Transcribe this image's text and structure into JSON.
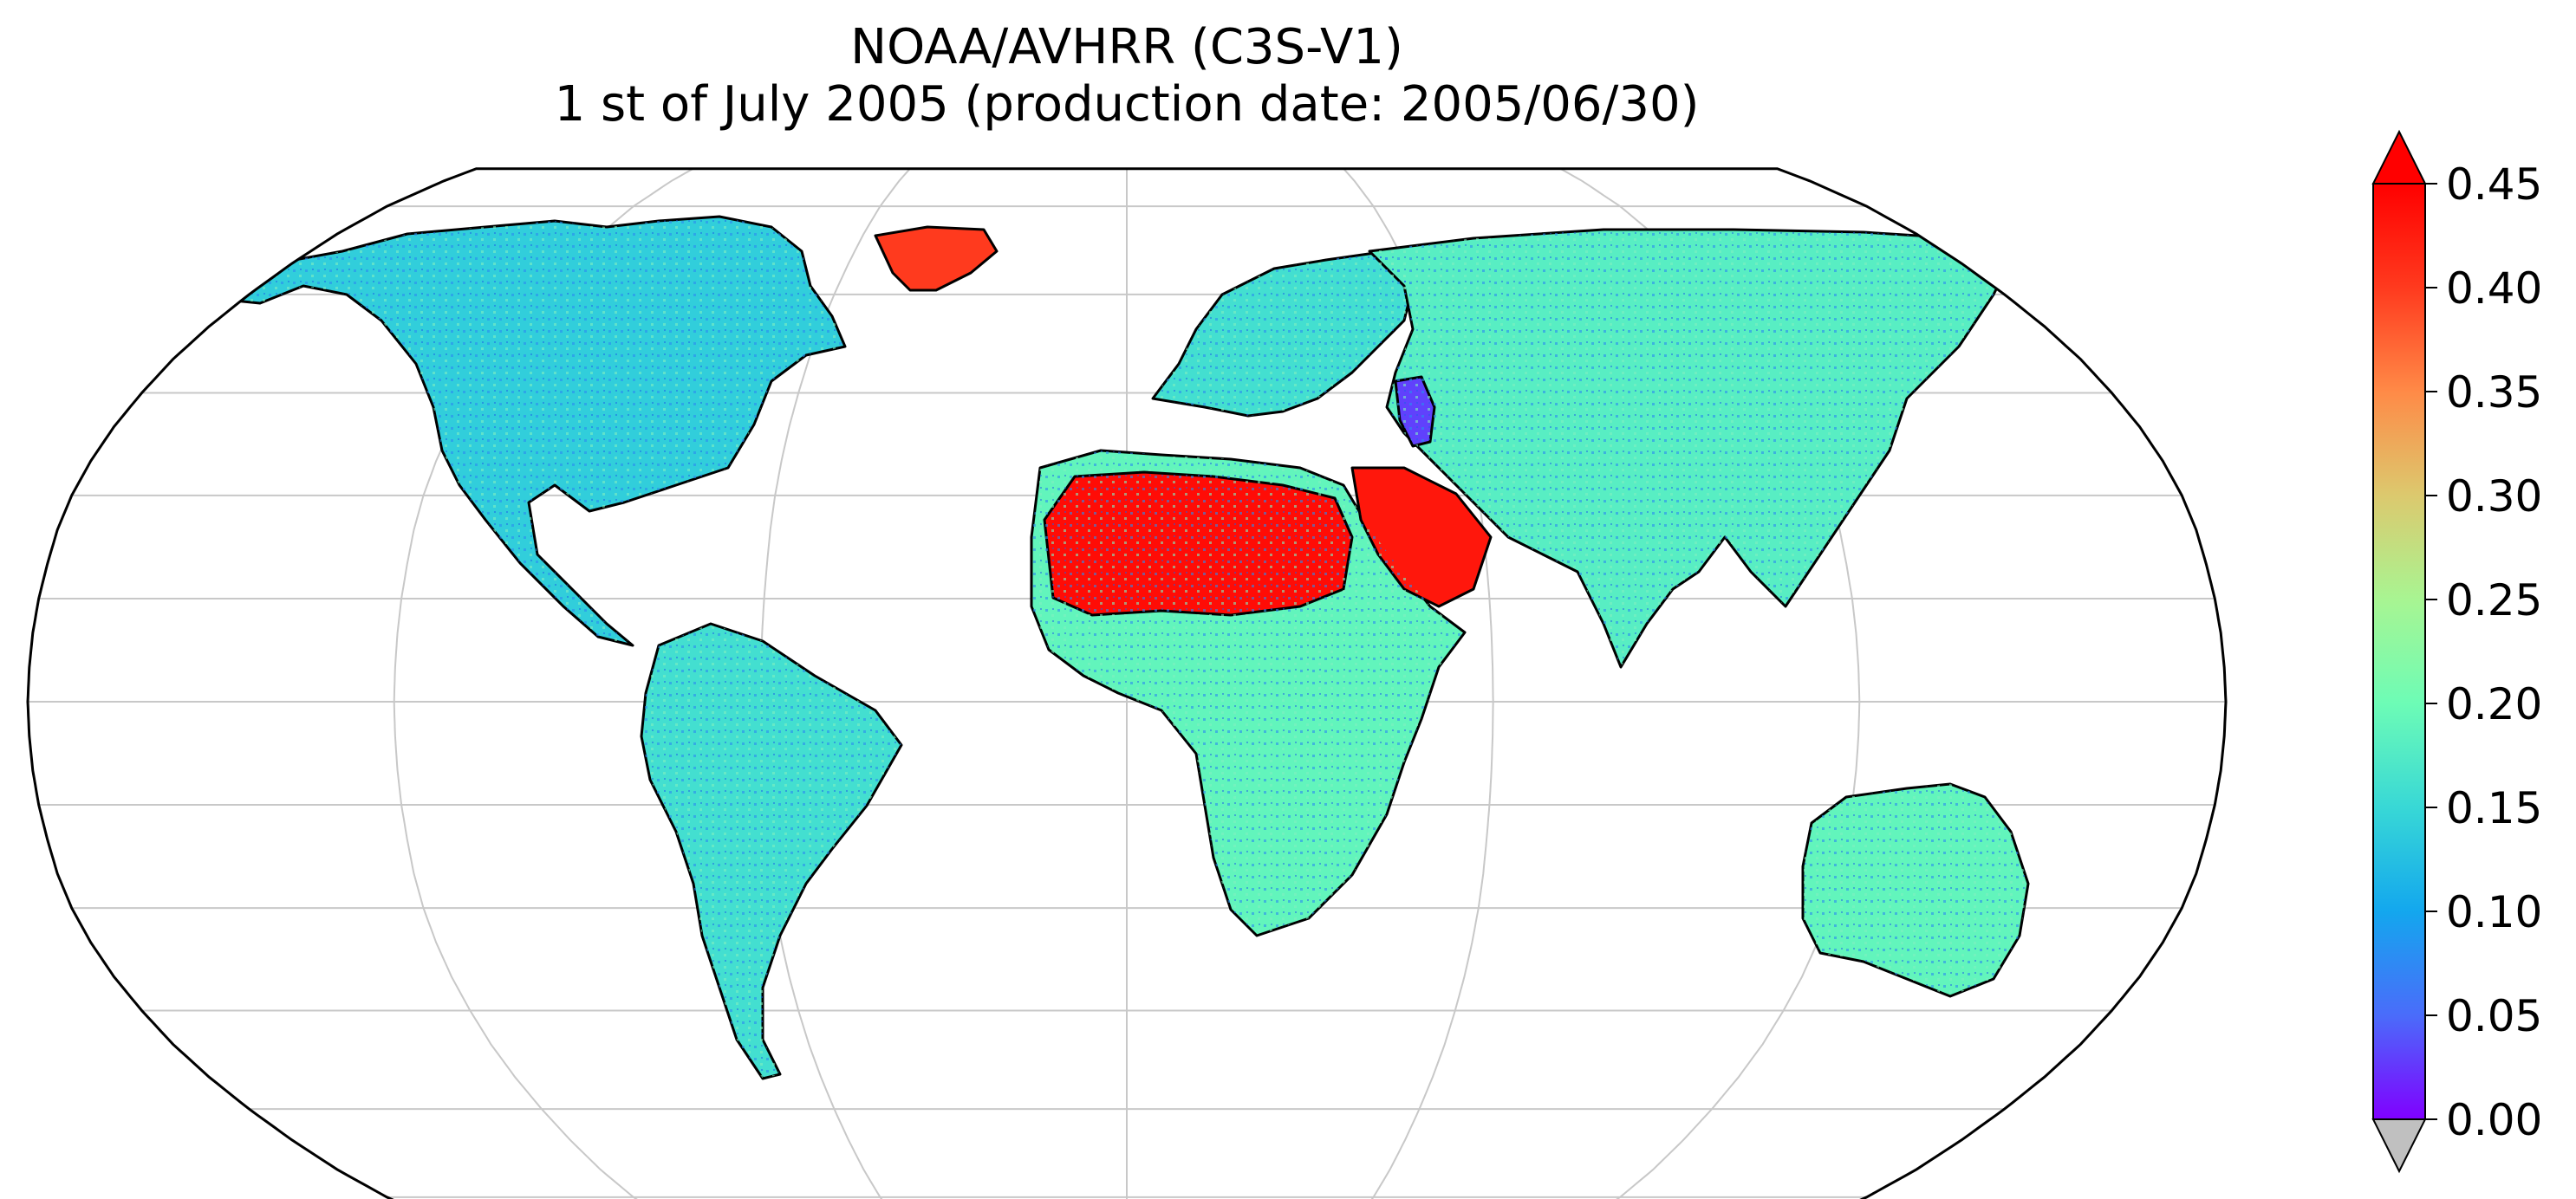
{
  "title": {
    "line1": "NOAA/AVHRR (C3S-V1)",
    "line2": "1 st of July 2005 (production date: 2005/06/30)"
  },
  "map": {
    "projection": "robinson",
    "graticule": "on",
    "coastlines": "black",
    "colormap": "rainbow",
    "regions": [
      {
        "name": "north-america",
        "level": 0.14
      },
      {
        "name": "greenland",
        "level": 0.4
      },
      {
        "name": "south-america",
        "level": 0.16
      },
      {
        "name": "europe",
        "level": 0.16
      },
      {
        "name": "asia",
        "level": 0.18
      },
      {
        "name": "africa",
        "level": 0.19
      },
      {
        "name": "sahara",
        "level": 0.44
      },
      {
        "name": "arabia",
        "level": 0.43
      },
      {
        "name": "australia",
        "level": 0.19
      },
      {
        "name": "caspian-sea",
        "level": 0.03
      }
    ]
  },
  "colorbar": {
    "min": 0.0,
    "max": 0.45,
    "ticks": [
      "0.00",
      "0.05",
      "0.10",
      "0.15",
      "0.20",
      "0.25",
      "0.30",
      "0.35",
      "0.40",
      "0.45"
    ],
    "extend": "both",
    "over_color": "#ff0000",
    "under_color": "#c0c0c0",
    "gradient": [
      "#8000ff",
      "#4a6cfa",
      "#13a7ee",
      "#38d8d6",
      "#6dfcb6",
      "#a8f592",
      "#dcc96e",
      "#ff8a47",
      "#ff3a1e",
      "#ff0000"
    ]
  }
}
